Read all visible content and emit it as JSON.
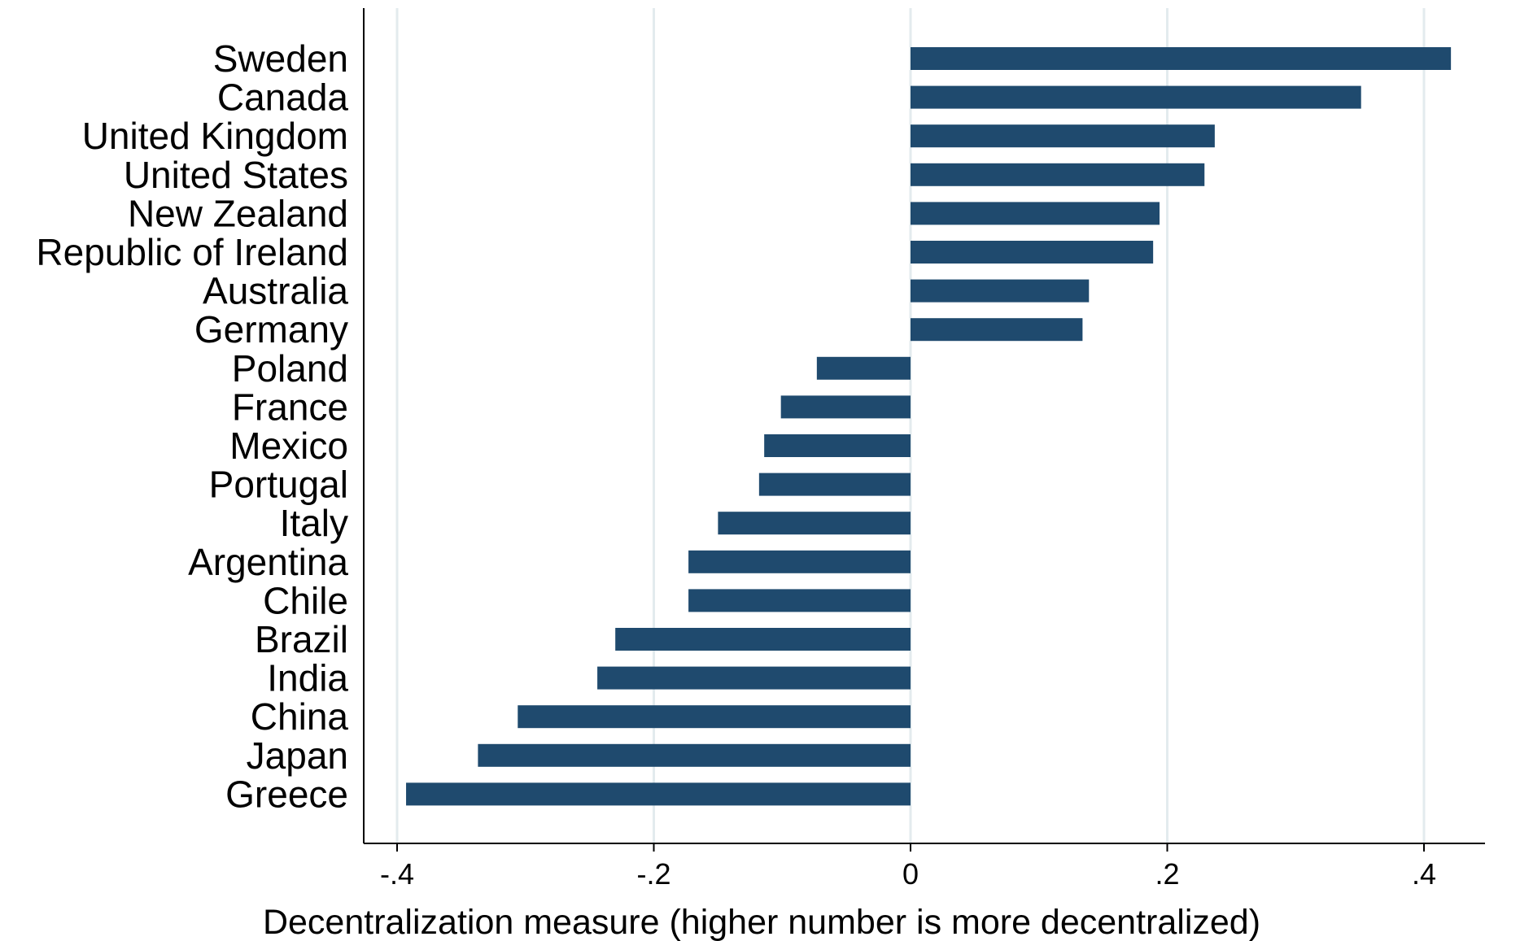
{
  "chart_data": {
    "type": "bar",
    "orientation": "horizontal",
    "title": "",
    "xlabel": "Decentralization measure (higher number is more decentralized)",
    "ylabel": "",
    "xlim": [
      -0.44,
      0.48
    ],
    "xticks": [
      -0.4,
      -0.2,
      0,
      0.2,
      0.4
    ],
    "xtick_labels": [
      "-.4",
      "-.2",
      "0",
      ".2",
      ".4"
    ],
    "grid": "vertical",
    "legend": "none",
    "bar_color": "#1f4a6e",
    "grid_color": "#e3ebee",
    "categories": [
      "Sweden",
      "Canada",
      "United Kingdom",
      "United States",
      "New Zealand",
      "Republic of Ireland",
      "Australia",
      "Germany",
      "Poland",
      "France",
      "Mexico",
      "Portugal",
      "Italy",
      "Argentina",
      "Chile",
      "Brazil",
      "India",
      "China",
      "Japan",
      "Greece"
    ],
    "values": [
      0.421,
      0.351,
      0.237,
      0.229,
      0.194,
      0.189,
      0.139,
      0.134,
      -0.073,
      -0.101,
      -0.114,
      -0.118,
      -0.15,
      -0.173,
      -0.173,
      -0.23,
      -0.244,
      -0.306,
      -0.337,
      -0.393
    ]
  }
}
